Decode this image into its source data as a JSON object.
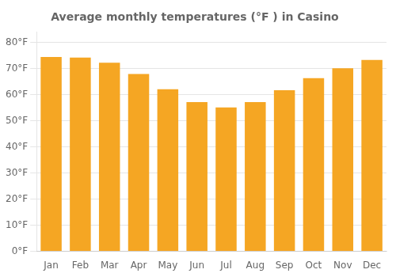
{
  "chart_data": {
    "type": "bar",
    "title": "Average monthly temperatures (°F ) in Casino",
    "categories": [
      "Jan",
      "Feb",
      "Mar",
      "Apr",
      "May",
      "Jun",
      "Jul",
      "Aug",
      "Sep",
      "Oct",
      "Nov",
      "Dec"
    ],
    "values": [
      74.5,
      74.3,
      72.3,
      68.0,
      62.2,
      57.2,
      55.2,
      57.2,
      61.8,
      66.4,
      70.2,
      73.4
    ],
    "color": "#F5A623",
    "ylim": [
      0,
      84
    ],
    "yticks": [
      {
        "value": 0,
        "label": "0°F"
      },
      {
        "value": 10,
        "label": "10°F"
      },
      {
        "value": 20,
        "label": "20°F"
      },
      {
        "value": 30,
        "label": "30°F"
      },
      {
        "value": 40,
        "label": "40°F"
      },
      {
        "value": 50,
        "label": "50°F"
      },
      {
        "value": 60,
        "label": "60°F"
      },
      {
        "value": 70,
        "label": "70°F"
      },
      {
        "value": 80,
        "label": "80°F"
      }
    ],
    "grid": true
  }
}
